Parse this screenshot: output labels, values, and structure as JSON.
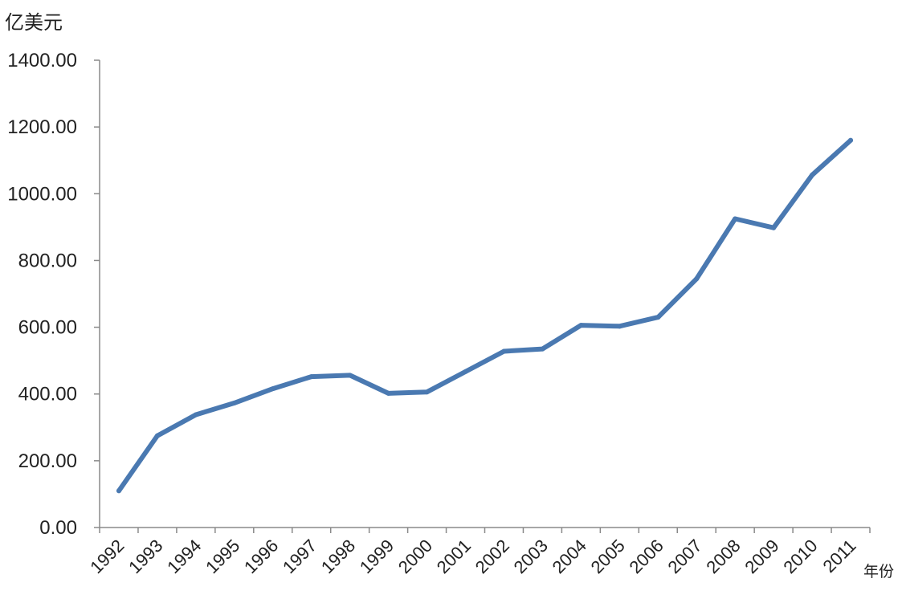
{
  "chart_data": {
    "type": "line",
    "title": "",
    "ylabel": "亿美元",
    "xlabel": "年份",
    "ylim": [
      0,
      1400
    ],
    "yticks": [
      0,
      200,
      400,
      600,
      800,
      1000,
      1200,
      1400
    ],
    "ytick_labels": [
      "0.00",
      "200.00",
      "400.00",
      "600.00",
      "800.00",
      "1000.00",
      "1200.00",
      "1400.00"
    ],
    "categories": [
      "1992",
      "1993",
      "1994",
      "1995",
      "1996",
      "1997",
      "1998",
      "1999",
      "2000",
      "2001",
      "2002",
      "2003",
      "2004",
      "2005",
      "2006",
      "2007",
      "2008",
      "2009",
      "2010",
      "2011"
    ],
    "series": [
      {
        "values": [
          110,
          275,
          338,
          373,
          416,
          452,
          456,
          402,
          406,
          467,
          528,
          535,
          606,
          603,
          630,
          745,
          925,
          898,
          1056,
          1160
        ],
        "color": "#4a79b1"
      }
    ],
    "grid": false,
    "legend": "none"
  }
}
